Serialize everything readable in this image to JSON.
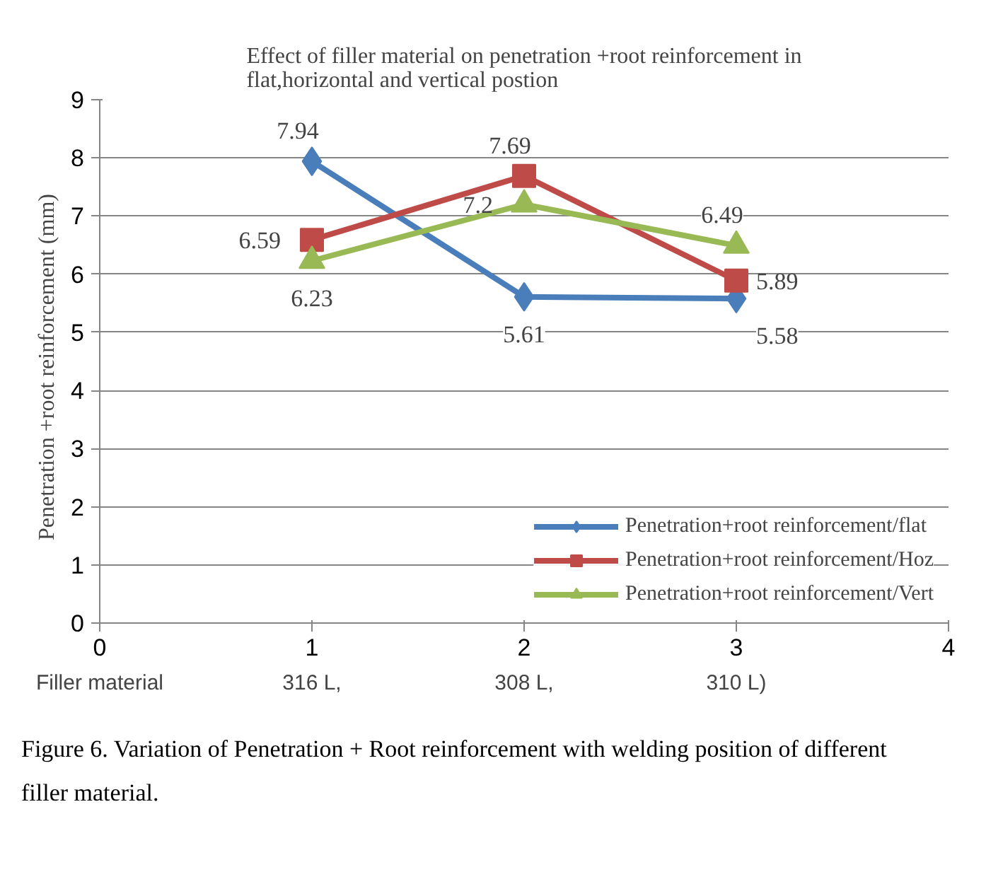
{
  "chart_data": {
    "type": "line",
    "title": "Effect of filler material on penetration +root reinforcement  in flat,horizontal and vertical postion",
    "ylabel": "Penetration  +root reinforcement  (mm)",
    "xlabel": "Filler material",
    "x": [
      1,
      2,
      3
    ],
    "series": [
      {
        "name": "Penetration+root reinforcement/flat",
        "color": "#4a7ebb",
        "values": [
          7.94,
          5.61,
          5.58
        ],
        "marker": "diamond"
      },
      {
        "name": "Penetration+root reinforcement/Hoz",
        "color": "#be4b48",
        "values": [
          6.59,
          7.69,
          5.89
        ],
        "marker": "square"
      },
      {
        "name": "Penetration+root reinforcement/Vert",
        "color": "#98b954",
        "values": [
          6.23,
          7.2,
          6.49
        ],
        "marker": "triangle"
      }
    ],
    "xlim": [
      0,
      4
    ],
    "xticks": [
      0,
      1,
      2,
      3,
      4
    ],
    "ylim": [
      0,
      9
    ],
    "yticks": [
      0,
      1,
      2,
      3,
      4,
      5,
      6,
      7,
      8,
      9
    ],
    "grid": "y",
    "legend": "bottom right",
    "data_labels": true,
    "line_style": "solid",
    "annotations": [
      "316 L,",
      "308 L,",
      "310 L)",
      "Figure 6. Variation of Penetration + Root reinforcement with welding position of different filler material."
    ]
  }
}
